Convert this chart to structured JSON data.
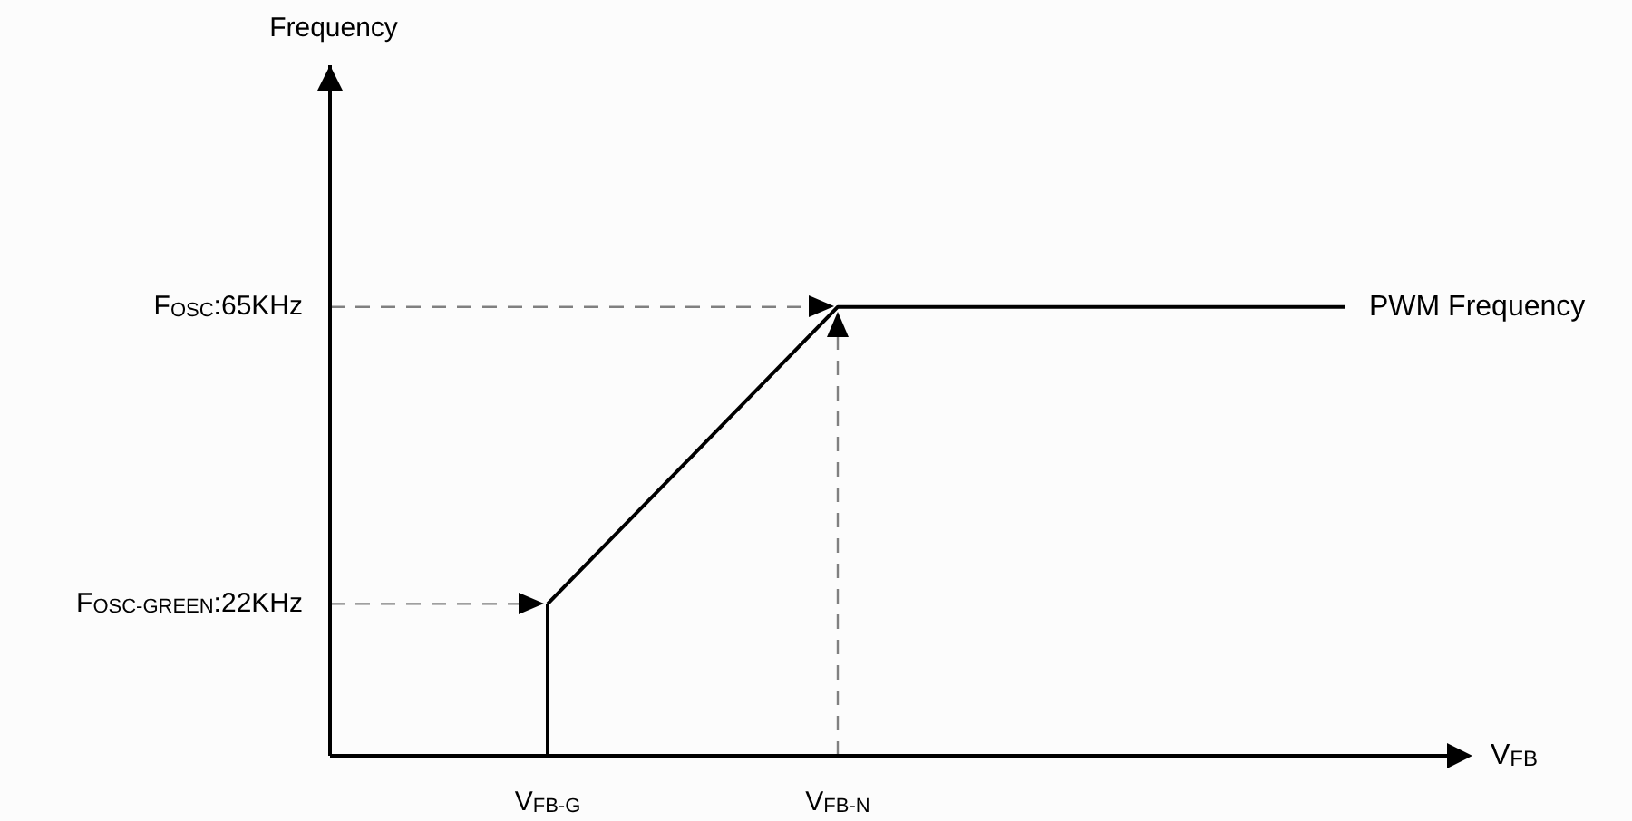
{
  "chart_data": {
    "type": "line",
    "xlabel": "V$_{FB}$",
    "ylabel": "Frequency",
    "categories": [
      null,
      null,
      null,
      "V$_{FB-G}$",
      null,
      null,
      null,
      "V$_{FB-N}$",
      null,
      null,
      null,
      null,
      null,
      null,
      null,
      null
    ],
    "ylim": [
      0,
      100
    ],
    "yticks": [
      {
        "value": 22,
        "label": "F$_{OSC-GREEN}$:22KHz"
      },
      {
        "value": 65,
        "label": "F$_{OSC}$:65KHz"
      }
    ],
    "series": [
      {
        "name": "PWM Frequency",
        "color": "#000000",
        "values": [
          null,
          null,
          null,
          22,
          null,
          null,
          null,
          65,
          null,
          null,
          null,
          null,
          null,
          null,
          65,
          null
        ]
      }
    ],
    "ref_lines": [
      {
        "axis": "x",
        "value": "V$_{FB-G}$",
        "label": null,
        "color": "#000000",
        "line_style": "solid"
      },
      {
        "axis": "y",
        "value": 65,
        "label": null,
        "color": "#808080",
        "line_style": "dashed"
      },
      {
        "axis": "y",
        "value": 22,
        "label": null,
        "color": "#808080",
        "line_style": "dashed"
      },
      {
        "axis": "x",
        "value": "V$_{FB-N}$",
        "label": null,
        "color": "#808080",
        "line_style": "dashed"
      }
    ],
    "grid": false,
    "legend": false,
    "marker": "none",
    "line_style": "solid"
  }
}
